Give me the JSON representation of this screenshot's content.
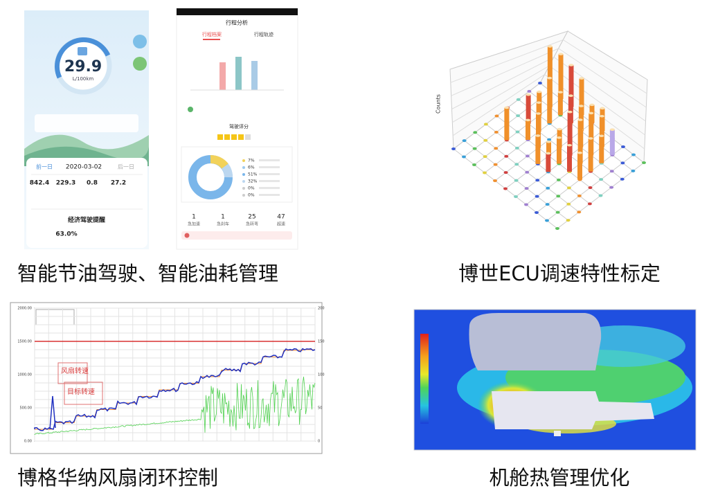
{
  "panels": [
    {
      "caption": "智能节油驾驶、智能油耗管理",
      "app1": {
        "fuel": "29.9",
        "unit": "L/100km",
        "prev": "前一日",
        "date": "2020-03-02",
        "next": "后一日",
        "stats": [
          "842.4",
          "229.3",
          "0.8",
          "27.2"
        ],
        "section": "经济驾驶提醒",
        "ratio": "63.0%"
      },
      "app2": {
        "title": "行程分析",
        "tabs": [
          "行程档案",
          "行程轨迹"
        ],
        "score_title": "驾驶评分",
        "percents": [
          "7%",
          "6%",
          "51%",
          "32%",
          "0%",
          "0%"
        ],
        "counts": [
          "1",
          "1",
          "25",
          "47"
        ],
        "count_labels": [
          "急加速",
          "急刹车",
          "急转弯",
          "超速"
        ]
      }
    },
    {
      "caption": "博世ECU调速特性标定",
      "zlabel": "Counts"
    },
    {
      "caption": "博格华纳风扇闭环控制",
      "yticks": [
        "2000.00",
        "1500.00",
        "1000.00",
        "500.00",
        "0.00"
      ],
      "y2ticks": [
        "200",
        "150",
        "100",
        "50",
        "0"
      ],
      "annotations": [
        "风扇转速",
        "目标转速"
      ]
    },
    {
      "caption": "机舱热管理优化"
    }
  ]
}
